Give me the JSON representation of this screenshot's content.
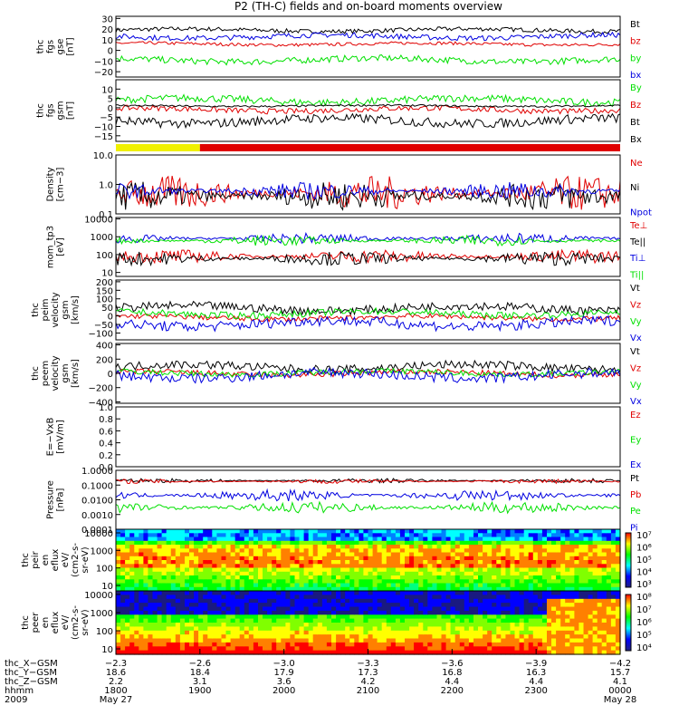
{
  "title": "P2 (TH-C) fields and on-board moments overview",
  "colors": {
    "black": "#000000",
    "red": "#e00000",
    "green": "#00e000",
    "blue": "#0000e0",
    "yellow": "#f0f000"
  },
  "chart_data": [
    {
      "panel": "fgs_gse",
      "type": "line",
      "ylabel": [
        "thc",
        "fgs",
        "gse",
        "[nT]"
      ],
      "ylim": [
        -25,
        32
      ],
      "yticks": [
        "30",
        "20",
        "10",
        "0",
        "−10",
        "−20"
      ],
      "ytick_values": [
        30,
        20,
        10,
        0,
        -10,
        -20
      ],
      "series": [
        {
          "name": "Bt",
          "color": "black",
          "baseline": 19,
          "amp": 2
        },
        {
          "name": "bz",
          "color": "red",
          "baseline": 6,
          "amp": 1.5
        },
        {
          "name": "by",
          "color": "green",
          "baseline": -9,
          "amp": 3
        },
        {
          "name": "bx",
          "color": "blue",
          "baseline": 13,
          "amp": 2.5
        }
      ]
    },
    {
      "panel": "fgs_gsm",
      "type": "line",
      "ylabel": [
        "thc",
        "fgs",
        "gsm",
        "[nT]"
      ],
      "ylim": [
        -18,
        15
      ],
      "yticks": [
        "10",
        "5",
        "0",
        "−5",
        "−10",
        "−15"
      ],
      "ytick_values": [
        10,
        5,
        0,
        -5,
        -10,
        -15
      ],
      "series": [
        {
          "name": "By",
          "color": "green",
          "baseline": 4,
          "amp": 2
        },
        {
          "name": "Bz",
          "color": "red",
          "baseline": -1,
          "amp": 1.5
        },
        {
          "name": "Bt",
          "color": "black",
          "baseline": 1,
          "amp": 0.5
        },
        {
          "name": "Bx",
          "color": "black",
          "baseline": -7,
          "amp": 2.5
        }
      ]
    },
    {
      "panel": "mode_bar",
      "type": "bar",
      "segments": [
        {
          "color": "yellow",
          "from": 1800,
          "to": 1900
        },
        {
          "color": "red",
          "from": 1900,
          "to": 2400
        }
      ]
    },
    {
      "panel": "density",
      "type": "line",
      "ylabel": [
        "Density",
        "[cm−3]"
      ],
      "yscale": "log",
      "ylim": [
        0.1,
        10
      ],
      "yticks": [
        "10.0",
        "1.0",
        "0.1"
      ],
      "ytick_values": [
        10,
        1,
        0.1
      ],
      "series": [
        {
          "name": "Ne",
          "color": "red",
          "baseline": 0.5,
          "amp": 0.6
        },
        {
          "name": "Ni",
          "color": "black",
          "baseline": 0.4,
          "amp": 0.5
        },
        {
          "name": "Npot",
          "color": "blue",
          "baseline": 0.6,
          "amp": 0.3
        }
      ]
    },
    {
      "panel": "temperature",
      "type": "line",
      "ylabel": [
        "mom_tp3",
        "[eV]"
      ],
      "yscale": "log",
      "ylim": [
        6,
        12000
      ],
      "yticks": [
        "10000",
        "1000",
        "100",
        "10"
      ],
      "ytick_values": [
        10000,
        1000,
        100,
        10
      ],
      "series": [
        {
          "name": "Te⊥",
          "color": "red",
          "baseline": 80,
          "amp": 0.4
        },
        {
          "name": "Te||",
          "color": "black",
          "baseline": 60,
          "amp": 0.4
        },
        {
          "name": "Ti⊥",
          "color": "blue",
          "baseline": 800,
          "amp": 0.3
        },
        {
          "name": "Ti||",
          "color": "green",
          "baseline": 600,
          "amp": 0.3
        }
      ]
    },
    {
      "panel": "peim_velocity",
      "type": "line",
      "ylabel": [
        "thc",
        "peim",
        "velocity",
        "gsm",
        "[km/s]"
      ],
      "ylim": [
        -140,
        210
      ],
      "yticks": [
        "200",
        "150",
        "100",
        "50",
        "0",
        "−50",
        "−100"
      ],
      "ytick_values": [
        200,
        150,
        100,
        50,
        0,
        -50,
        -100
      ],
      "series": [
        {
          "name": "Vt",
          "color": "black",
          "baseline": 45,
          "amp": 25
        },
        {
          "name": "Vz",
          "color": "red",
          "baseline": -10,
          "amp": 15
        },
        {
          "name": "Vy",
          "color": "green",
          "baseline": 15,
          "amp": 20
        },
        {
          "name": "Vx",
          "color": "blue",
          "baseline": -45,
          "amp": 30
        }
      ]
    },
    {
      "panel": "peem_velocity",
      "type": "line",
      "ylabel": [
        "thc",
        "peem",
        "velocity",
        "gsm",
        "[km/s]"
      ],
      "ylim": [
        -420,
        420
      ],
      "yticks": [
        "400",
        "200",
        "0",
        "−200",
        "−400"
      ],
      "ytick_values": [
        400,
        200,
        0,
        -200,
        -400
      ],
      "series": [
        {
          "name": "Vt",
          "color": "black",
          "baseline": 90,
          "amp": 60
        },
        {
          "name": "Vz",
          "color": "red",
          "baseline": 0,
          "amp": 40
        },
        {
          "name": "Vy",
          "color": "green",
          "baseline": 10,
          "amp": 40
        },
        {
          "name": "Vx",
          "color": "blue",
          "baseline": -30,
          "amp": 70
        }
      ]
    },
    {
      "panel": "efield",
      "type": "line",
      "ylabel": [
        "E=−VxB",
        "[mV/m]"
      ],
      "ylim": [
        0,
        1
      ],
      "yticks": [
        "1.0",
        "0.8",
        "0.6",
        "0.4",
        "0.2",
        "0.0"
      ],
      "ytick_values": [
        1,
        0.8,
        0.6,
        0.4,
        0.2,
        0
      ],
      "series": [
        {
          "name": "Ez",
          "color": "red"
        },
        {
          "name": "Ey",
          "color": "green"
        },
        {
          "name": "Ex",
          "color": "blue"
        }
      ]
    },
    {
      "panel": "pressure",
      "type": "line",
      "ylabel": [
        "Pressure",
        "[nPa]"
      ],
      "yscale": "log",
      "ylim": [
        0.0001,
        1
      ],
      "yticks": [
        "1.0000",
        "0.1000",
        "0.0100",
        "0.0010",
        "0.0001"
      ],
      "ytick_values": [
        1,
        0.1,
        0.01,
        0.001,
        0.0001
      ],
      "series": [
        {
          "name": "Pt",
          "color": "black",
          "baseline": 0.2,
          "amp": 0.15
        },
        {
          "name": "Pb",
          "color": "red",
          "baseline": 0.18,
          "amp": 0.15
        },
        {
          "name": "Pe",
          "color": "green",
          "baseline": 0.003,
          "amp": 0.4
        },
        {
          "name": "Pi",
          "color": "blue",
          "baseline": 0.02,
          "amp": 0.4
        }
      ]
    },
    {
      "panel": "peir_spectrogram",
      "type": "heatmap",
      "ylabel": [
        "thc",
        "peir",
        "en",
        "eflux",
        "eV/",
        "(cm2-s-",
        "sr-eV)"
      ],
      "yscale": "log",
      "ylim": [
        5,
        20000
      ],
      "yticks": [
        "10000",
        "1000",
        "100",
        "10"
      ],
      "colorbar_ticks": [
        "10⁷",
        "10⁶",
        "10⁵",
        "10⁴",
        "10³"
      ]
    },
    {
      "panel": "peer_spectrogram",
      "type": "heatmap",
      "ylabel": [
        "thc",
        "peer",
        "en",
        "eflux",
        "eV/",
        "(cm2-s-",
        "sr-eV)"
      ],
      "yscale": "log",
      "ylim": [
        7,
        20000
      ],
      "yticks": [
        "10000",
        "1000",
        "100",
        "10"
      ],
      "colorbar_ticks": [
        "10⁸",
        "10⁷",
        "10⁶",
        "10⁵",
        "10⁴"
      ]
    }
  ],
  "xaxis": {
    "rows": [
      "thc_X−GSM",
      "thc_Y−GSM",
      "thc_Z−GSM",
      "hhmm",
      "2009"
    ],
    "ticks": [
      {
        "time": 1800,
        "vals": [
          "−2.3",
          "18.6",
          "2.2",
          "1800",
          "May 27"
        ]
      },
      {
        "time": 1900,
        "vals": [
          "−2.6",
          "18.4",
          "3.1",
          "1900",
          ""
        ]
      },
      {
        "time": 2000,
        "vals": [
          "−3.0",
          "17.9",
          "3.6",
          "2000",
          ""
        ]
      },
      {
        "time": 2100,
        "vals": [
          "−3.3",
          "17.3",
          "4.2",
          "2100",
          ""
        ]
      },
      {
        "time": 2200,
        "vals": [
          "−3.6",
          "16.8",
          "4.4",
          "2200",
          ""
        ]
      },
      {
        "time": 2300,
        "vals": [
          "−3.9",
          "16.3",
          "4.4",
          "2300",
          ""
        ]
      },
      {
        "time": 2400,
        "vals": [
          "−4.2",
          "15.7",
          "4.1",
          "0000",
          "May 28"
        ]
      }
    ]
  }
}
